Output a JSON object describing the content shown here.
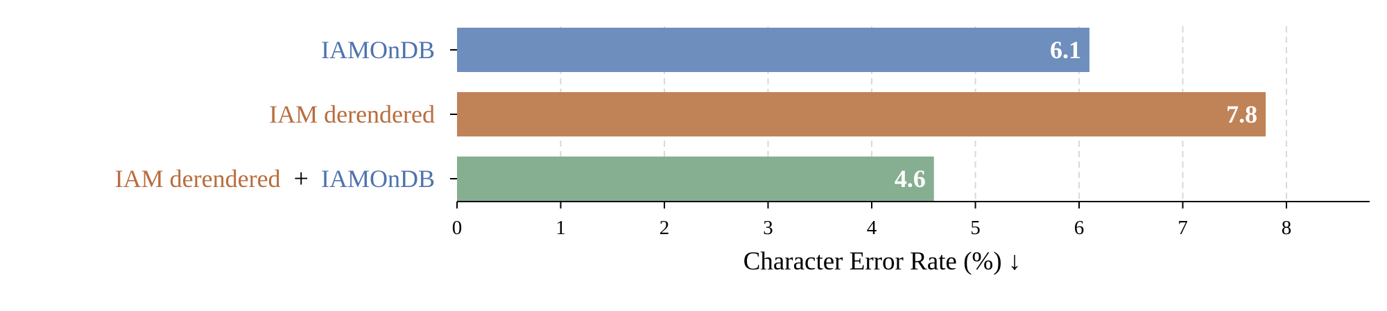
{
  "chart_data": {
    "type": "bar",
    "orientation": "horizontal",
    "categories": [
      {
        "parts": [
          "IAM derendered",
          "+",
          "IAMOnDB"
        ],
        "part_colors": [
          "#B86D3E",
          "#000000",
          "#4E72B0"
        ]
      },
      {
        "parts": [
          "IAM derendered"
        ],
        "part_colors": [
          "#B86D3E"
        ]
      },
      {
        "parts": [
          "IAMOnDB"
        ],
        "part_colors": [
          "#4E72B0"
        ]
      }
    ],
    "values": [
      4.6,
      7.8,
      6.1
    ],
    "data_labels": [
      "4.6",
      "7.8",
      "6.1"
    ],
    "bar_colors": [
      "#86AF91",
      "#C08257",
      "#6E8FBD"
    ],
    "xlabel": "Character Error Rate (%) ↓",
    "xlim": [
      0,
      8.8
    ],
    "xticks": [
      0,
      1,
      2,
      3,
      4,
      5,
      6,
      7,
      8
    ],
    "grid": "vertical dashed",
    "legend": "none"
  }
}
